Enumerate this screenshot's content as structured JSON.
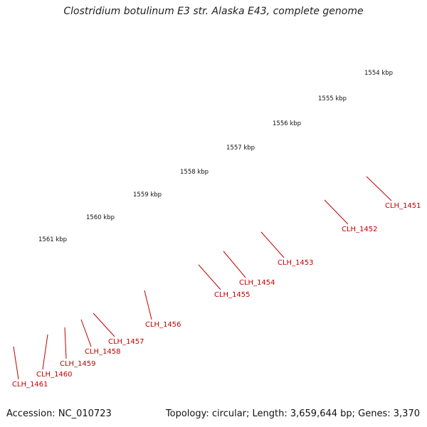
{
  "title": "Clostridium botulinum E3 str. Alaska E43, complete genome",
  "footer": {
    "accession": "Accession: NC_010723",
    "summary": "Topology: circular; Length: 3,659,644 bp; Genes: 3,370"
  },
  "colors": {
    "backbone": "#808080",
    "forward_cds": "#ff0000",
    "reverse_cds": "#ff0000",
    "pseudogene": "#666666",
    "rna": "#6b8e23",
    "rna_light": "#f08080",
    "ticks": "#228b22",
    "label": "#c00000"
  },
  "ruler": {
    "unit": "kbp",
    "labels": [
      "1554 kbp",
      "1555 kbp",
      "1556 kbp",
      "1557 kbp",
      "1558 kbp",
      "1559 kbp",
      "1560 kbp",
      "1561 kbp"
    ]
  },
  "genes": [
    {
      "id": "CLH_1451",
      "track": "reverse",
      "kind": "rna"
    },
    {
      "id": "CLH_1452",
      "track": "reverse",
      "kind": "cds"
    },
    {
      "id": "CLH_1453",
      "track": "forward",
      "kind": "cds"
    },
    {
      "id": "CLH_1454",
      "track": "forward",
      "kind": "cds"
    },
    {
      "id": "CLH_1455",
      "track": "forward",
      "kind": "cds"
    },
    {
      "id": "CLH_1456",
      "track": "reverse",
      "kind": "pseudo"
    },
    {
      "id": "CLH_1457",
      "track": "forward",
      "kind": "cds"
    },
    {
      "id": "CLH_1458",
      "track": "forward",
      "kind": "cds"
    },
    {
      "id": "CLH_1459",
      "track": "forward",
      "kind": "cds"
    },
    {
      "id": "CLH_1460",
      "track": "forward",
      "kind": "cds"
    },
    {
      "id": "CLH_1461",
      "track": "reverse",
      "kind": "rna"
    }
  ]
}
